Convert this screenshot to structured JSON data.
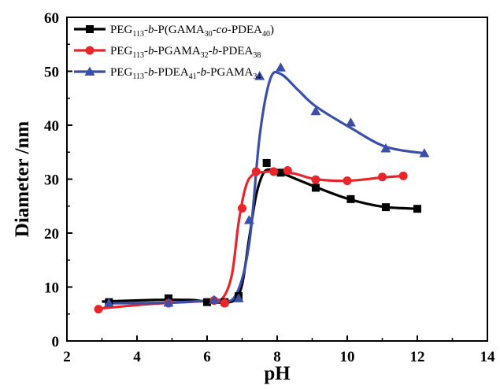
{
  "chart_data": {
    "type": "scatter",
    "xlabel": "pH",
    "ylabel": "Diameter /nm",
    "xlim": [
      2,
      14
    ],
    "ylim": [
      0,
      60
    ],
    "xticks": [
      2,
      4,
      6,
      8,
      10,
      12,
      14
    ],
    "yticks": [
      0,
      10,
      20,
      30,
      40,
      50,
      60
    ],
    "legend_position": "top-left",
    "grid": false,
    "series": [
      {
        "name": "PEG113-b-P(GAMA30-co-PDEA40)",
        "legend": {
          "p1": "PEG",
          "s1": "113",
          "p2": "-",
          "i1": "b",
          "p3": "-P(GAMA",
          "s2": "30",
          "p4": "-",
          "i2": "co",
          "p5": "-PDEA",
          "s3": "40",
          "p6": ")"
        },
        "color": "#000000",
        "marker": "square",
        "x": [
          3.2,
          4.9,
          6.0,
          6.5,
          6.9,
          7.7,
          8.1,
          9.1,
          10.1,
          11.1,
          12.0
        ],
        "y": [
          7.2,
          7.9,
          7.2,
          7.2,
          8.3,
          33.0,
          31.2,
          28.4,
          26.3,
          24.8,
          24.5
        ]
      },
      {
        "name": "PEG113-b-PGAMA32-b-PDEA38",
        "legend": {
          "p1": "PEG",
          "s1": "113",
          "p2": "-",
          "i1": "b",
          "p3": "-PGAMA",
          "s2": "32",
          "p4": "-",
          "i2": "b",
          "p5": "-PDEA",
          "s3": "38",
          "p6": ""
        },
        "color": "#e8262a",
        "marker": "circle",
        "x": [
          2.9,
          4.9,
          6.2,
          6.5,
          7.0,
          7.4,
          7.9,
          8.3,
          9.1,
          10.0,
          11.0,
          11.6
        ],
        "y": [
          5.9,
          7.0,
          7.5,
          7.0,
          24.6,
          31.4,
          31.4,
          31.6,
          29.9,
          29.7,
          30.4,
          30.6
        ]
      },
      {
        "name": "PEG113-b-PDEA41-b-PGAMA34",
        "legend": {
          "p1": "PEG",
          "s1": "113",
          "p2": "-",
          "i1": "b",
          "p3": "-PDEA",
          "s2": "41",
          "p4": "-",
          "i2": "b",
          "p5": "-PGAMA",
          "s3": "34",
          "p6": ""
        },
        "color": "#3a4fa8",
        "marker": "triangle",
        "x": [
          3.2,
          4.9,
          6.2,
          6.9,
          7.2,
          7.5,
          8.1,
          9.1,
          10.1,
          11.1,
          12.2
        ],
        "y": [
          7.0,
          7.1,
          7.6,
          7.9,
          22.4,
          49.1,
          50.7,
          42.6,
          40.5,
          35.7,
          34.8
        ]
      }
    ],
    "curves": [
      {
        "x": [
          3.0,
          4.5,
          5.5,
          6.0,
          6.5,
          6.8,
          7.0,
          7.2,
          7.4,
          7.6,
          7.8,
          8.1,
          9.0,
          10.0,
          11.0,
          12.0
        ],
        "y": [
          7.3,
          7.6,
          7.6,
          7.3,
          7.1,
          7.7,
          10.5,
          19.0,
          27.0,
          31.0,
          31.8,
          31.2,
          28.8,
          26.4,
          24.9,
          24.5
        ]
      },
      {
        "x": [
          2.9,
          4.5,
          6.0,
          6.4,
          6.7,
          6.9,
          7.1,
          7.3,
          7.6,
          8.0,
          8.5,
          9.1,
          10.0,
          11.0,
          11.6
        ],
        "y": [
          6.0,
          6.9,
          7.4,
          7.6,
          12.0,
          22.0,
          28.5,
          30.8,
          31.3,
          31.4,
          31.0,
          30.0,
          29.7,
          30.3,
          30.6
        ]
      },
      {
        "x": [
          3.2,
          4.9,
          6.2,
          6.8,
          7.2,
          7.5,
          7.8,
          8.1,
          8.6,
          9.1,
          10.1,
          11.1,
          12.2
        ],
        "y": [
          7.0,
          7.1,
          7.6,
          8.3,
          18.0,
          38.0,
          48.5,
          49.5,
          46.5,
          43.5,
          39.5,
          36.0,
          34.8
        ]
      }
    ]
  }
}
